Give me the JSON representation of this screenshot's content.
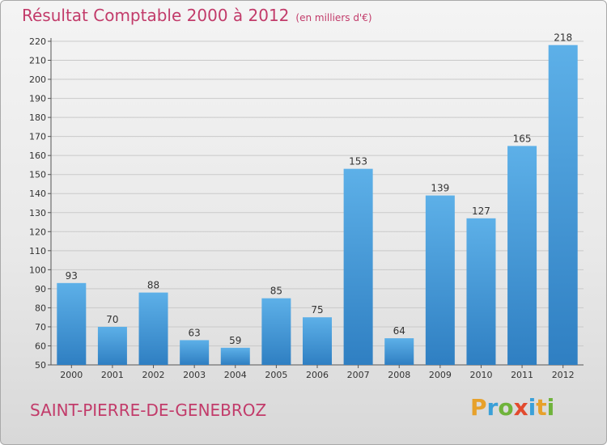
{
  "header": {
    "title": "Résultat Comptable 2000 à 2012",
    "unit": "(en milliers d'€)"
  },
  "commune": "SAINT-PIERRE-DE-GENEBROZ",
  "logo": {
    "letters": [
      "P",
      "r",
      "o",
      "x",
      "i",
      "t",
      "i"
    ],
    "colors": [
      "#e7a12b",
      "#3aa0d8",
      "#6fb33b",
      "#e24a2e",
      "#3aa0d8",
      "#e7a12b",
      "#6fb33b"
    ]
  },
  "colors": {
    "bar": "#3a8fd3",
    "bar_light": "#5aade6",
    "accent": "#c23b6a",
    "grid": "#c9c9c9"
  },
  "chart_data": {
    "type": "bar",
    "title": "Résultat Comptable 2000 à 2012",
    "subtitle": "(en milliers d'€)",
    "categories": [
      "2000",
      "2001",
      "2002",
      "2003",
      "2004",
      "2005",
      "2006",
      "2007",
      "2008",
      "2009",
      "2010",
      "2011",
      "2012"
    ],
    "values": [
      93,
      70,
      88,
      63,
      59,
      85,
      75,
      153,
      64,
      139,
      127,
      165,
      218
    ],
    "ylim": [
      50,
      220
    ],
    "yticks": [
      50,
      60,
      70,
      80,
      90,
      100,
      110,
      120,
      130,
      140,
      150,
      160,
      170,
      180,
      190,
      200,
      210,
      220
    ],
    "grid": true,
    "data_labels": true
  }
}
